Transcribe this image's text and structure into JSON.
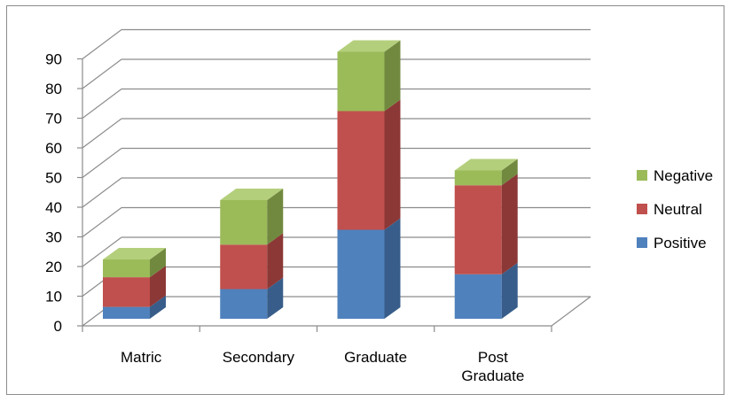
{
  "chart_data": {
    "type": "bar",
    "stacked": true,
    "three_d": true,
    "categories": [
      "Matric",
      "Secondary",
      "Graduate",
      "Post Graduate"
    ],
    "category_lines": [
      [
        "Matric"
      ],
      [
        "Secondary"
      ],
      [
        "Graduate"
      ],
      [
        "Post",
        "Graduate"
      ]
    ],
    "series": [
      {
        "name": "Positive",
        "values": [
          4,
          10,
          30,
          15
        ],
        "color": "#4f81bd",
        "side": "#385d8a",
        "top": "#6f9bd2"
      },
      {
        "name": "Neutral",
        "values": [
          10,
          15,
          40,
          30
        ],
        "color": "#c0504d",
        "side": "#8c3836",
        "top": "#d27a78"
      },
      {
        "name": "Negative",
        "values": [
          6,
          15,
          20,
          5
        ],
        "color": "#9bbb59",
        "side": "#71893f",
        "top": "#b4cf7c"
      }
    ],
    "ylim": [
      0,
      90
    ],
    "yticks": [
      0,
      10,
      20,
      30,
      40,
      50,
      60,
      70,
      80,
      90
    ],
    "grid": true,
    "legend": "right",
    "title": "",
    "xlabel": "",
    "ylabel": ""
  }
}
